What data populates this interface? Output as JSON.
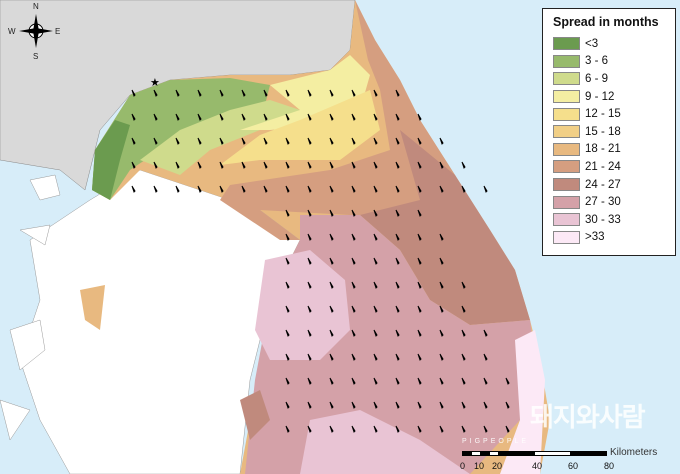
{
  "legend": {
    "title": "Spread in months",
    "items": [
      {
        "label": "<3",
        "color": "#6b9b4f"
      },
      {
        "label": "3 - 6",
        "color": "#97ba6c"
      },
      {
        "label": "6 - 9",
        "color": "#cfdb8c"
      },
      {
        "label": "9 - 12",
        "color": "#f4eea2"
      },
      {
        "label": "12 - 15",
        "color": "#f5df8c"
      },
      {
        "label": "15 - 18",
        "color": "#f1cf86"
      },
      {
        "label": "18 - 21",
        "color": "#e8b980"
      },
      {
        "label": "21 - 24",
        "color": "#d59e80"
      },
      {
        "label": "24 - 27",
        "color": "#c08a7d"
      },
      {
        "label": "27 - 30",
        "color": "#d4a1a8"
      },
      {
        "label": "30 - 33",
        "color": "#e9c4d4"
      },
      {
        "label": ">33",
        "color": "#fce9f6"
      }
    ]
  },
  "scale": {
    "ticks": [
      "0",
      "10",
      "20",
      "40",
      "60",
      "80"
    ],
    "unit": "Kilometers"
  },
  "compass": {
    "n": "N",
    "s": "S",
    "e": "E",
    "w": "W"
  },
  "watermark": {
    "text": "돼지와사람",
    "sub": "PIGPEOPLE"
  },
  "colors": {
    "sea": "#d7edf9",
    "other_land": "#d9d9d9",
    "outside": "#ffffff"
  }
}
